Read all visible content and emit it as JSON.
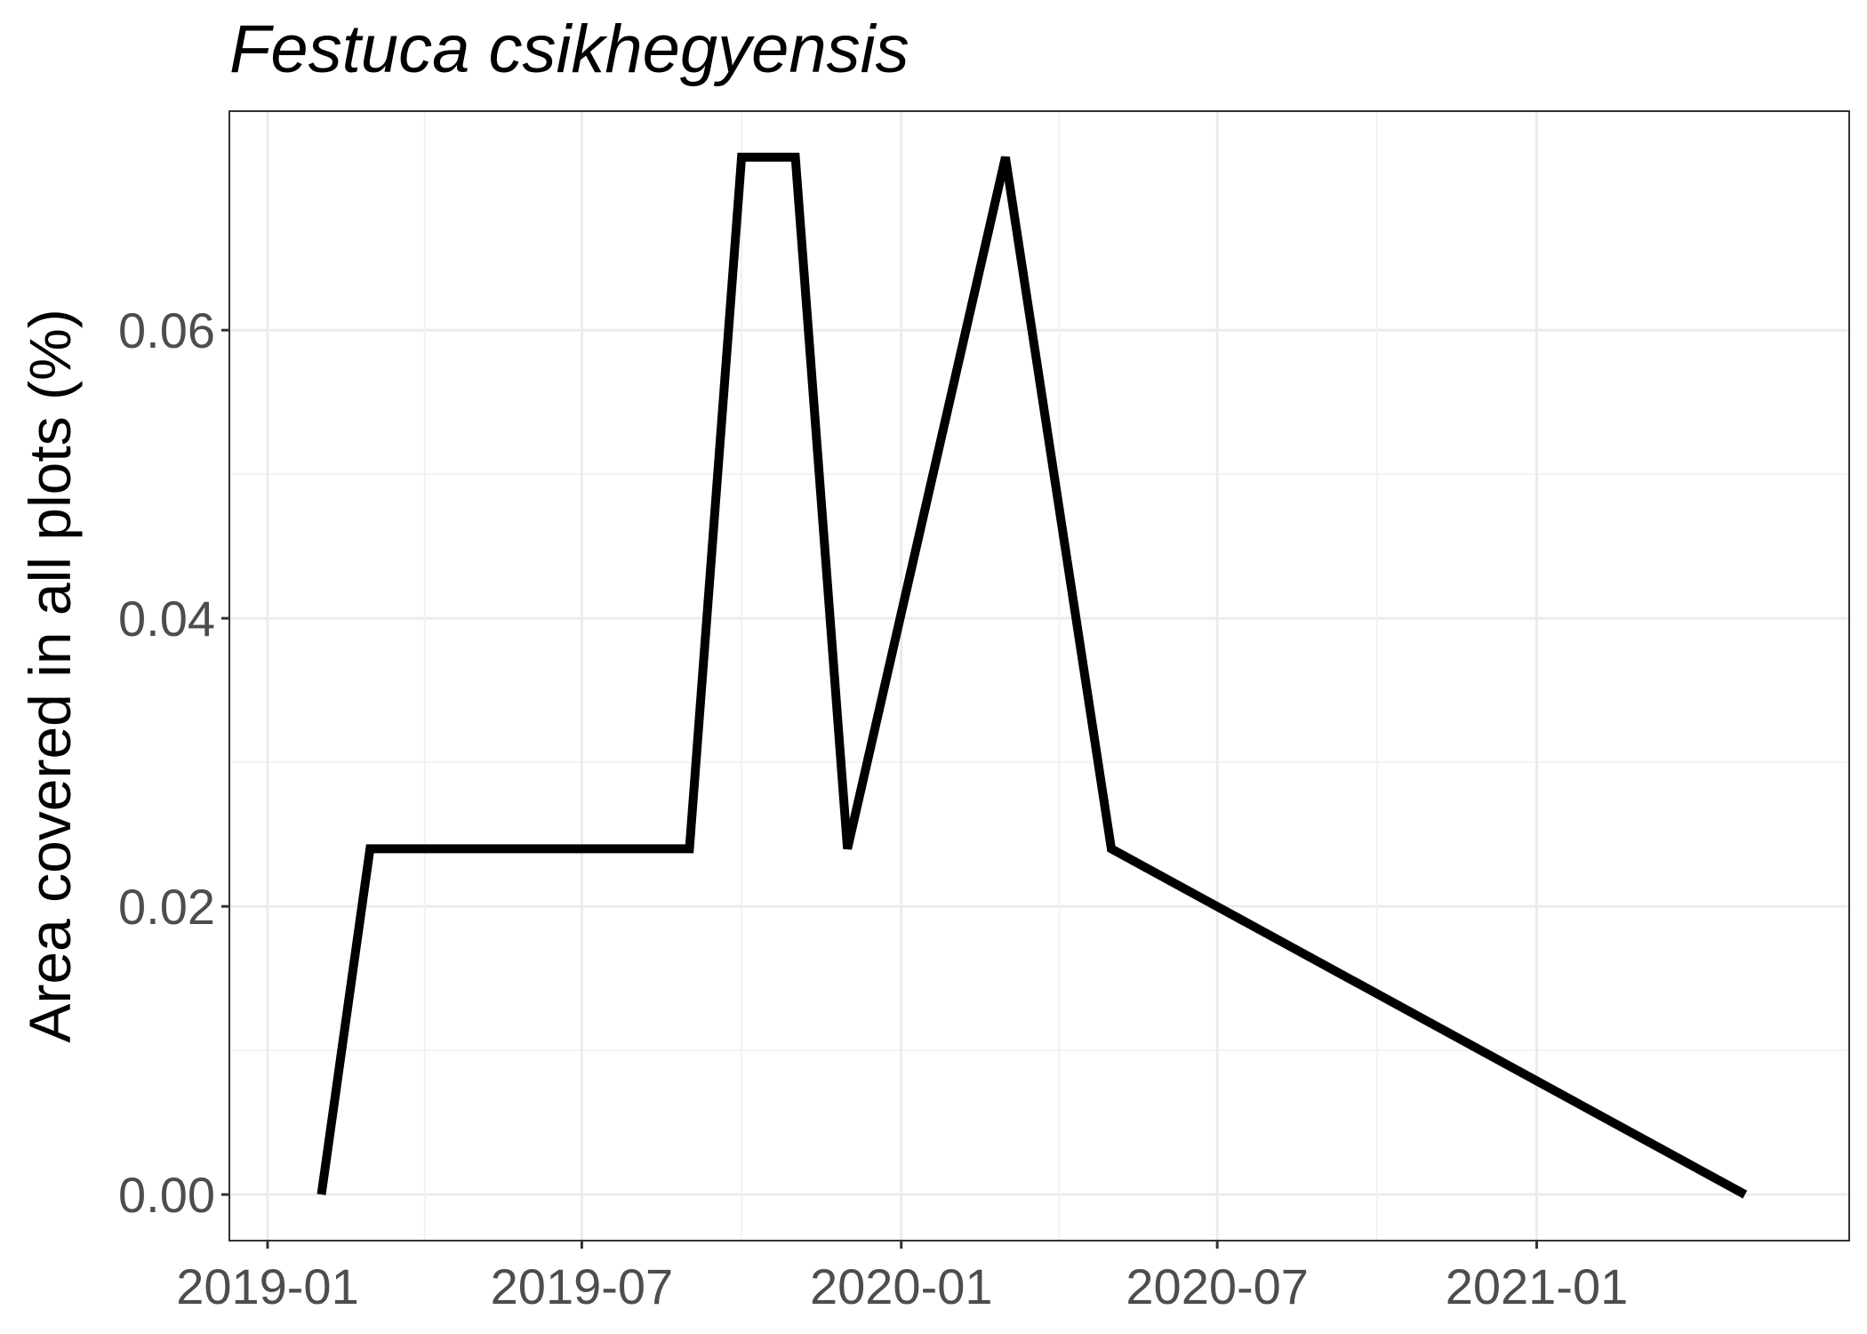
{
  "chart_data": {
    "type": "line",
    "title": "Festuca csikhegyensis",
    "xlabel": "",
    "ylabel": "Area covered in all plots (%)",
    "x_ticks": [
      "2019-01",
      "2019-07",
      "2020-01",
      "2020-07",
      "2021-01"
    ],
    "y_ticks": [
      "0.00",
      "0.02",
      "0.04",
      "0.06"
    ],
    "xlim": [
      "2018-12-10",
      "2021-06-30"
    ],
    "ylim": [
      -0.0032,
      0.0752
    ],
    "grid": true,
    "series": [
      {
        "color": "#000000",
        "points": [
          {
            "x": "2019-02-01",
            "y": 0.0
          },
          {
            "x": "2019-03-01",
            "y": 0.024
          },
          {
            "x": "2019-04-01",
            "y": 0.024
          },
          {
            "x": "2019-05-01",
            "y": 0.024
          },
          {
            "x": "2019-06-01",
            "y": 0.024
          },
          {
            "x": "2019-07-01",
            "y": 0.024
          },
          {
            "x": "2019-08-01",
            "y": 0.024
          },
          {
            "x": "2019-09-01",
            "y": 0.024
          },
          {
            "x": "2019-10-01",
            "y": 0.072
          },
          {
            "x": "2019-11-01",
            "y": 0.072
          },
          {
            "x": "2019-12-01",
            "y": 0.024
          },
          {
            "x": "2020-03-01",
            "y": 0.072
          },
          {
            "x": "2020-05-01",
            "y": 0.024
          },
          {
            "x": "2021-05-01",
            "y": 0.0
          }
        ]
      }
    ]
  }
}
